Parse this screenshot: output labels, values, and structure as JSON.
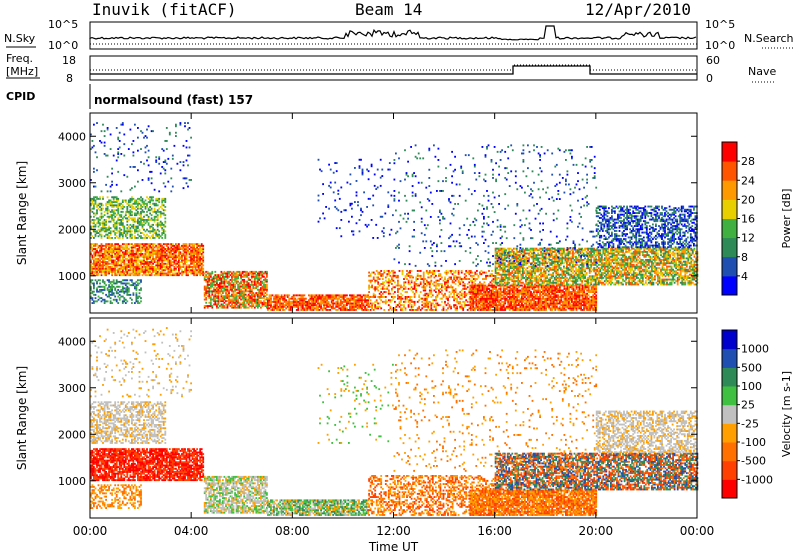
{
  "header": {
    "station": "Inuvik (fitACF)",
    "beam": "Beam 14",
    "date": "12/Apr/2010"
  },
  "noise_panel": {
    "left_label": "N.Sky",
    "right_label": "N.Search",
    "left_ticks": [
      "10^5",
      "10^0"
    ],
    "right_ticks": [
      "10^5",
      "10^0"
    ]
  },
  "freq_panel": {
    "left_label_line1": "Freq.",
    "left_label_line2": "[MHz]",
    "right_label": "Nave",
    "left_ticks": [
      "18",
      "8"
    ],
    "right_ticks": [
      "60",
      "0"
    ]
  },
  "cpid_panel": {
    "label": "CPID",
    "mode_text": "normalsound (fast) 157"
  },
  "colors": {
    "power_scale": [
      "#0000ff",
      "#1f4fb0",
      "#2e8b57",
      "#40b040",
      "#e8d000",
      "#ff9900",
      "#ff5500",
      "#ff0000"
    ],
    "velocity_scale": [
      "#ff0000",
      "#ff4000",
      "#ff7000",
      "#ffa000",
      "#c0c0c0",
      "#40c040",
      "#2e8b57",
      "#1f4fb0",
      "#0000cc"
    ]
  },
  "chart_data": [
    {
      "type": "heatmap",
      "ylabel": "Slant Range [km]",
      "yticks": [
        "1000",
        "2000",
        "3000",
        "4000"
      ],
      "ylim": [
        200,
        4500
      ],
      "colorbar_label": "Power [dB]",
      "colorbar_ticks": [
        "4",
        "8",
        "12",
        "16",
        "20",
        "24",
        "28"
      ],
      "zlim": [
        0,
        32
      ]
    },
    {
      "type": "heatmap",
      "ylabel": "Slant Range [km]",
      "yticks": [
        "1000",
        "2000",
        "3000",
        "4000"
      ],
      "ylim": [
        200,
        4500
      ],
      "xlabel": "Time UT",
      "xticks": [
        "00:00",
        "04:00",
        "08:00",
        "12:00",
        "16:00",
        "20:00",
        "00:00"
      ],
      "xlim": [
        0,
        24
      ],
      "colorbar_label": "Velocity [m s-1]",
      "colorbar_ticks": [
        "1000",
        "500",
        "100",
        "25",
        "-25",
        "-100",
        "-500",
        "-1000"
      ]
    }
  ]
}
